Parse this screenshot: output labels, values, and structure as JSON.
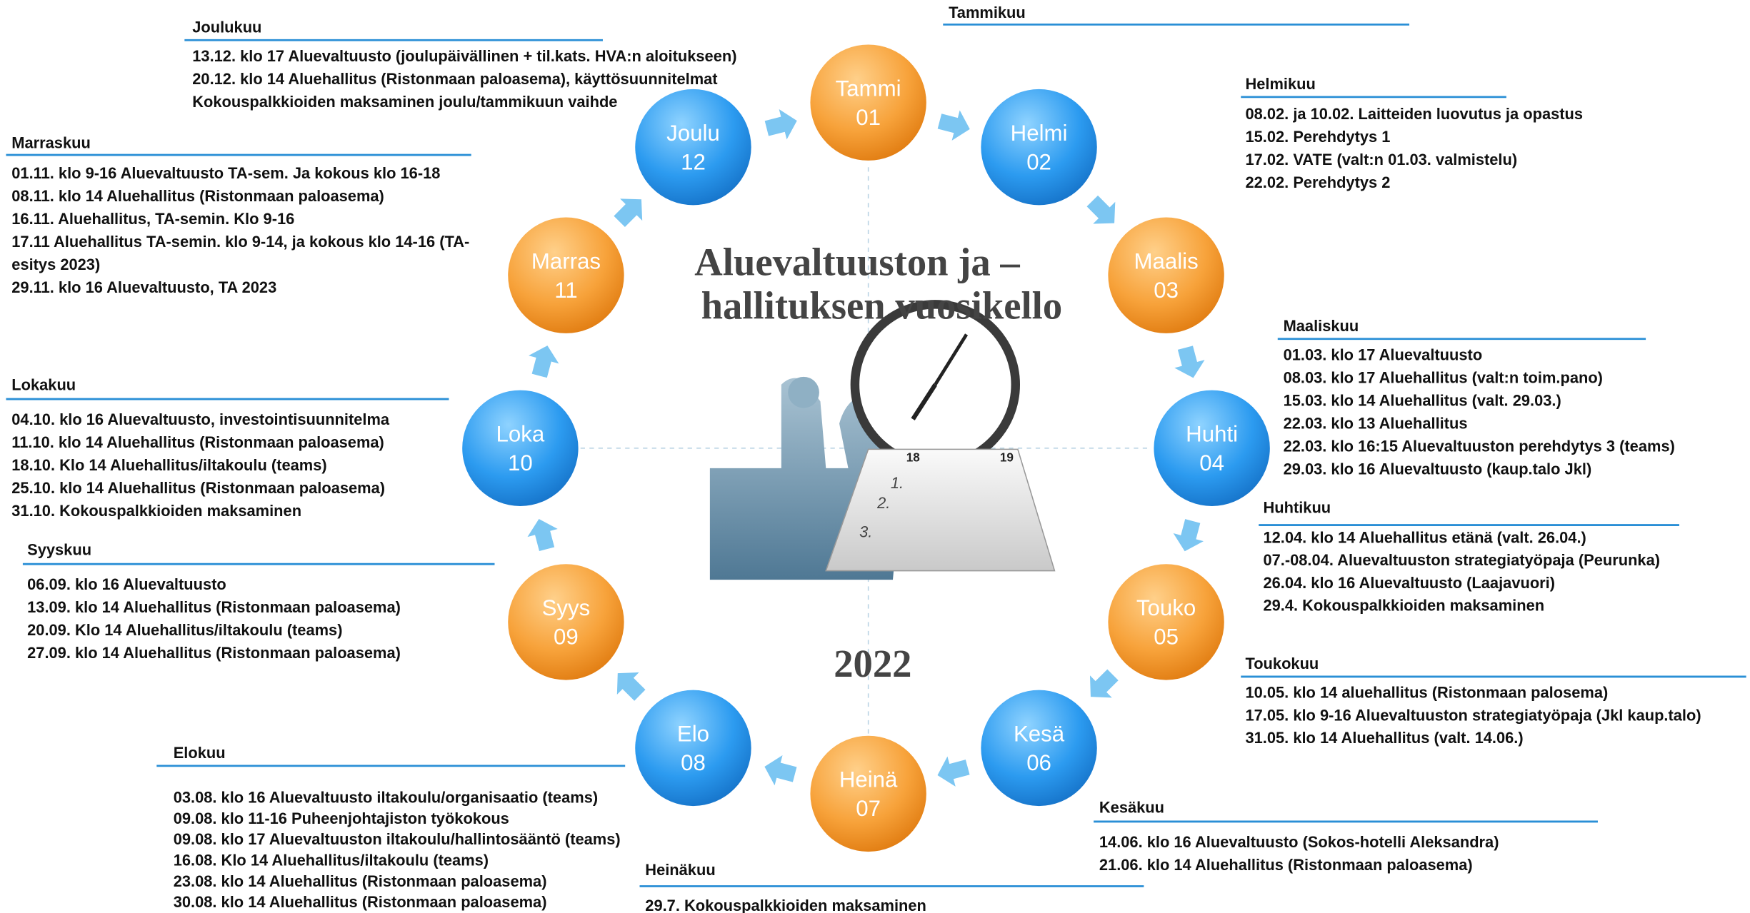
{
  "title": [
    "Aluevaltuuston ja –",
    "hallituksen vuosikello"
  ],
  "year": "2022",
  "months": [
    {
      "name": "Tammi",
      "number": "01"
    },
    {
      "name": "Helmi",
      "number": "02"
    },
    {
      "name": "Maalis",
      "number": "03"
    },
    {
      "name": "Huhti",
      "number": "04"
    },
    {
      "name": "Touko",
      "number": "05"
    },
    {
      "name": "Kesä",
      "number": "06"
    },
    {
      "name": "Heinä",
      "number": "07"
    },
    {
      "name": "Elo",
      "number": "08"
    },
    {
      "name": "Syys",
      "number": "09"
    },
    {
      "name": "Loka",
      "number": "10"
    },
    {
      "name": "Marras",
      "number": "11"
    },
    {
      "name": "Joulu",
      "number": "12"
    }
  ],
  "sections": [
    {
      "heading": "Tammikuu",
      "items": []
    },
    {
      "heading": "Helmikuu",
      "items": [
        "08.02. ja 10.02. Laitteiden luovutus ja opastus",
        "15.02. Perehdytys 1",
        "17.02. VATE (valt:n 01.03. valmistelu)",
        "22.02. Perehdytys 2"
      ]
    },
    {
      "heading": "Maaliskuu",
      "items": [
        "01.03. klo 17 Aluevaltuusto",
        "08.03. klo 17 Aluehallitus (valt:n toim.pano)",
        "15.03. klo 14  Aluehallitus (valt. 29.03.)",
        "22.03. klo 13 Aluehallitus",
        "22.03. klo 16:15 Aluevaltuuston perehdytys 3 (teams)",
        "29.03. klo 16 Aluevaltuusto (kaup.talo Jkl)"
      ]
    },
    {
      "heading": "Huhtikuu",
      "items": [
        "12.04. klo 14 Aluehallitus etänä (valt. 26.04.)",
        "07.-08.04. Aluevaltuuston strategiatyöpaja (Peurunka)",
        "26.04. klo 16 Aluevaltuusto (Laajavuori)",
        "29.4. Kokouspalkkioiden maksaminen"
      ]
    },
    {
      "heading": "Toukokuu",
      "items": [
        "10.05. klo 14 aluehallitus (Ristonmaan palosema)",
        "17.05. klo 9-16 Aluevaltuuston strategiatyöpaja (Jkl kaup.talo)",
        "31.05. klo 14 Aluehallitus (valt. 14.06.)"
      ]
    },
    {
      "heading": "Kesäkuu",
      "items": [
        "14.06. klo 16 Aluevaltuusto (Sokos-hotelli Aleksandra)",
        "21.06. klo 14 Aluehallitus (Ristonmaan paloasema)"
      ]
    },
    {
      "heading": "Heinäkuu",
      "items": [
        "29.7. Kokouspalkkioiden maksaminen"
      ]
    },
    {
      "heading": "Elokuu",
      "items": [
        "03.08. klo 16 Aluevaltuusto iltakoulu/organisaatio (teams)",
        "09.08. klo 11-16 Puheenjohtajiston työkokous",
        "09.08. klo 17 Aluevaltuuston iltakoulu/hallintosääntö (teams)",
        "16.08. Klo 14 Aluehallitus/iltakoulu (teams)",
        "23.08. klo 14 Aluehallitus (Ristonmaan paloasema)",
        "30.08. klo 14 Aluehallitus (Ristonmaan paloasema)"
      ]
    },
    {
      "heading": "Syyskuu",
      "items": [
        "06.09. klo 16 Aluevaltuusto",
        "13.09.  klo 14 Aluehallitus (Ristonmaan paloasema)",
        "20.09. Klo 14 Aluehallitus/iltakoulu  (teams)",
        "27.09.  klo 14 Aluehallitus (Ristonmaan paloasema)"
      ]
    },
    {
      "heading": "Lokakuu",
      "items": [
        "04.10. klo 16 Aluevaltuusto, investointisuunnitelma",
        "11.10. klo 14 Aluehallitus (Ristonmaan paloasema)",
        "18.10. Klo 14 Aluehallitus/iltakoulu (teams)",
        "25.10. klo 14 Aluehallitus (Ristonmaan paloasema)",
        "31.10. Kokouspalkkioiden maksaminen"
      ]
    },
    {
      "heading": "Marraskuu",
      "items": [
        "01.11. klo 9-16 Aluevaltuusto TA-sem. Ja kokous klo 16-18",
        "08.11. klo 14 Aluehallitus (Ristonmaan paloasema)",
        "16.11. Aluehallitus, TA-semin. Klo 9-16",
        "17.11  Aluehallitus TA-semin. klo 9-14, ja kokous klo 14-16 (TA-",
        "esitys 2023)",
        "29.11. klo 16 Aluevaltuusto, TA 2023"
      ]
    },
    {
      "heading": "Joulukuu",
      "items": [
        "13.12. klo 17 Aluevaltuusto (joulupäivällinen + til.kats. HVA:n aloitukseen)",
        "20.12. klo 14 Aluehallitus (Ristonmaan paloasema), käyttösuunnitelmat",
        "Kokouspalkkioiden maksaminen joulu/tammikuun vaihde"
      ]
    }
  ]
}
